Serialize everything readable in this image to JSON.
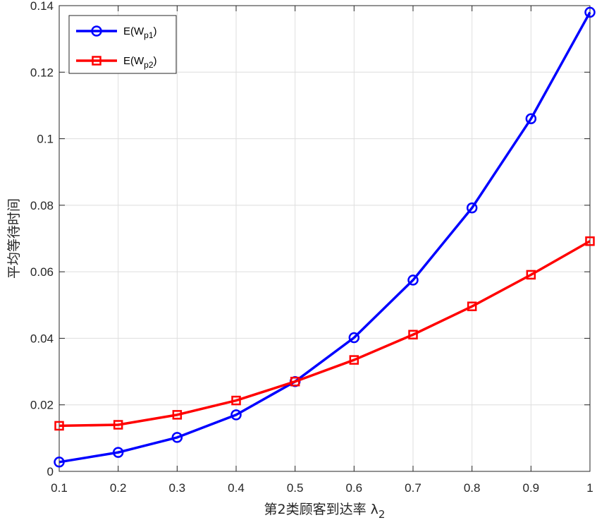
{
  "chart_data": {
    "type": "line",
    "title": "",
    "xlabel": "第2类顾客到达率 λ",
    "xlabel_subscript": "2",
    "ylabel": "平均等待时间",
    "xlim": [
      0.1,
      1
    ],
    "ylim": [
      0,
      0.14
    ],
    "grid": true,
    "legend_position": "top-left",
    "x": [
      0.1,
      0.2,
      0.3,
      0.4,
      0.5,
      0.6,
      0.7,
      0.8,
      0.9,
      1.0
    ],
    "x_ticks": [
      {
        "value": 0.1,
        "label": "0.1"
      },
      {
        "value": 0.2,
        "label": "0.2"
      },
      {
        "value": 0.3,
        "label": "0.3"
      },
      {
        "value": 0.4,
        "label": "0.4"
      },
      {
        "value": 0.5,
        "label": "0.5"
      },
      {
        "value": 0.6,
        "label": "0.6"
      },
      {
        "value": 0.7,
        "label": "0.7"
      },
      {
        "value": 0.8,
        "label": "0.8"
      },
      {
        "value": 0.9,
        "label": "0.9"
      },
      {
        "value": 1.0,
        "label": "1"
      }
    ],
    "y_ticks": [
      {
        "value": 0,
        "label": "0"
      },
      {
        "value": 0.02,
        "label": "0.02"
      },
      {
        "value": 0.04,
        "label": "0.04"
      },
      {
        "value": 0.06,
        "label": "0.06"
      },
      {
        "value": 0.08,
        "label": "0.08"
      },
      {
        "value": 0.1,
        "label": "0.1"
      },
      {
        "value": 0.12,
        "label": "0.12"
      },
      {
        "value": 0.14,
        "label": "0.14"
      }
    ],
    "series": [
      {
        "name": "E(W",
        "name_subscript": "p1",
        "name_suffix": ")",
        "color": "#0000ff",
        "marker": "circle",
        "values": [
          0.0028,
          0.0057,
          0.0102,
          0.017,
          0.027,
          0.0402,
          0.0575,
          0.0792,
          0.106,
          0.138
        ]
      },
      {
        "name": "E(W",
        "name_subscript": "p2",
        "name_suffix": ")",
        "color": "#ff0000",
        "marker": "square",
        "values": [
          0.0137,
          0.014,
          0.017,
          0.0213,
          0.027,
          0.0335,
          0.0411,
          0.0496,
          0.0591,
          0.0692
        ]
      }
    ]
  }
}
